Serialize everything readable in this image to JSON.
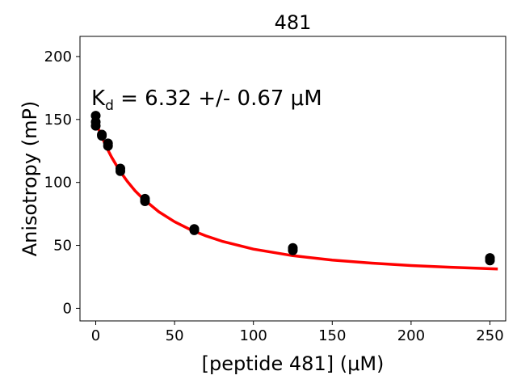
{
  "chart_data": {
    "type": "scatter",
    "title": "481",
    "xlabel": "[peptide 481] (μM)",
    "ylabel": "Anisotropy (mP)",
    "xlim": [
      -10,
      260
    ],
    "ylim": [
      -10,
      216
    ],
    "xticks": [
      0,
      50,
      100,
      150,
      200,
      250
    ],
    "yticks": [
      0,
      50,
      100,
      150,
      200
    ],
    "grid": false,
    "annotation": {
      "prefix": "K",
      "subscript": "d",
      "text": " = 6.32 +/- 0.67 μM"
    },
    "series": [
      {
        "kind": "points",
        "color": "#000000",
        "points": [
          [
            0,
            153
          ],
          [
            0,
            148
          ],
          [
            0,
            145
          ],
          [
            3.9,
            138
          ],
          [
            3.9,
            137
          ],
          [
            7.8,
            131
          ],
          [
            7.8,
            129
          ],
          [
            15.6,
            111
          ],
          [
            15.6,
            109
          ],
          [
            31.25,
            87
          ],
          [
            31.25,
            85
          ],
          [
            62.5,
            63
          ],
          [
            62.5,
            62
          ],
          [
            125,
            48
          ],
          [
            125,
            46
          ],
          [
            250,
            40
          ],
          [
            250,
            38
          ]
        ]
      },
      {
        "kind": "fit",
        "color": "#ff0000",
        "x": [
          0,
          2,
          5,
          8,
          10,
          15,
          20,
          25,
          30,
          40,
          50,
          60,
          70,
          80,
          100,
          125,
          150,
          175,
          200,
          225,
          255
        ],
        "y": [
          148,
          141.8,
          133.0,
          125.1,
          120.2,
          109.6,
          100.8,
          93.3,
          87.0,
          76.7,
          68.8,
          62.5,
          57.5,
          53.3,
          47.0,
          41.8,
          38.3,
          35.9,
          34.0,
          32.6,
          31.3
        ]
      }
    ]
  }
}
